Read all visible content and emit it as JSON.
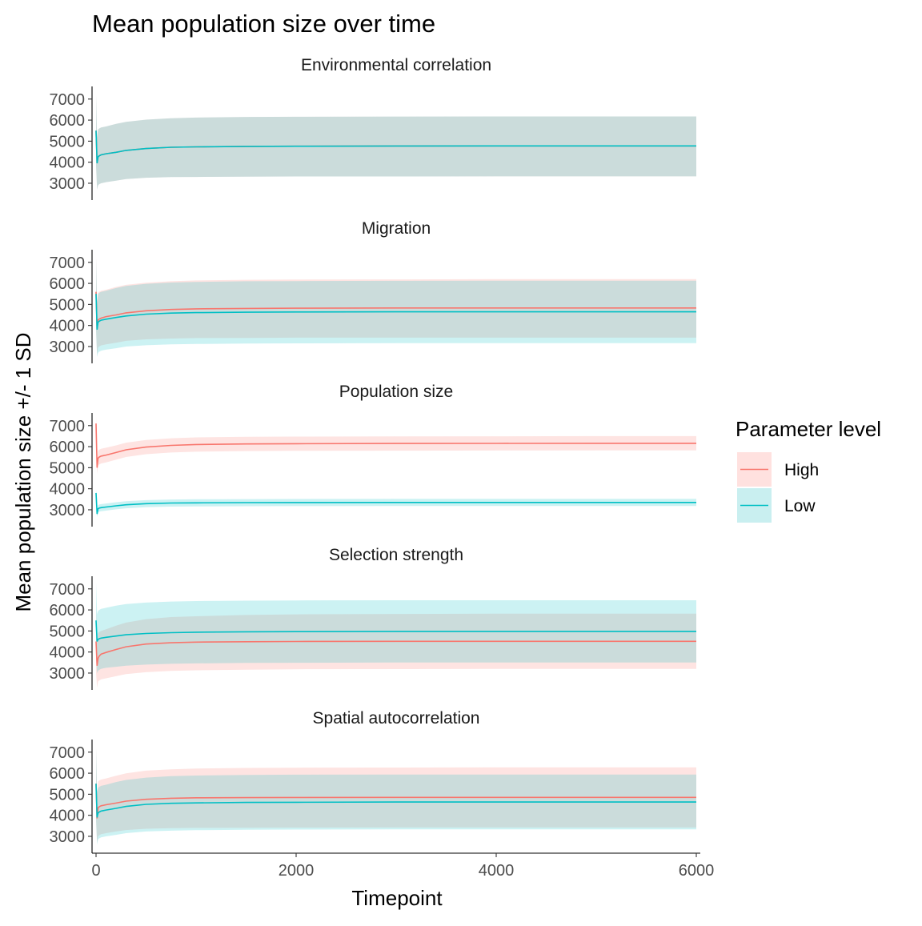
{
  "chart_data": {
    "type": "line",
    "title": "Mean population size over time",
    "xlabel": "Timepoint",
    "ylabel": "Mean population size +/- 1 SD",
    "xlim": [
      -40,
      6040
    ],
    "ylim": [
      2200,
      7600
    ],
    "x_ticks": [
      0,
      2000,
      4000,
      6000
    ],
    "y_ticks": [
      3000,
      4000,
      5000,
      6000,
      7000
    ],
    "band": "mean +/- 1 SD",
    "grid": false,
    "legend": {
      "title": "Parameter level",
      "placement": "right",
      "entries": [
        {
          "label": "High",
          "line_color": "#F8766D",
          "fill_color": "#FFE1DF"
        },
        {
          "label": "Low",
          "line_color": "#00BFC4",
          "fill_color": "#C9EFF0"
        }
      ]
    },
    "overlap_fill_color": "#CDDFDE",
    "x_profile": [
      0,
      10,
      20,
      30,
      50,
      100,
      200,
      300,
      500,
      750,
      1000,
      1500,
      2000,
      3000,
      4000,
      5000,
      6000
    ],
    "panels": [
      {
        "title": "Environmental correlation",
        "series": [
          {
            "name": "High",
            "mean": [
              5500,
              3950,
              4250,
              4300,
              4350,
              4400,
              4470,
              4560,
              4650,
              4710,
              4730,
              4750,
              4760,
              4770,
              4775,
              4775,
              4775
            ],
            "lower": [
              3800,
              2700,
              2900,
              2950,
              3000,
              3050,
              3120,
              3200,
              3260,
              3290,
              3300,
              3310,
              3320,
              3320,
              3325,
              3325,
              3325
            ],
            "upper": [
              7200,
              5200,
              5550,
              5600,
              5650,
              5700,
              5820,
              5920,
              6020,
              6090,
              6120,
              6150,
              6160,
              6170,
              6175,
              6175,
              6175
            ]
          },
          {
            "name": "Low",
            "mean": [
              5500,
              3950,
              4250,
              4300,
              4350,
              4400,
              4470,
              4560,
              4650,
              4710,
              4730,
              4750,
              4760,
              4770,
              4775,
              4775,
              4775
            ],
            "lower": [
              3800,
              2700,
              2900,
              2950,
              3000,
              3050,
              3120,
              3200,
              3260,
              3290,
              3300,
              3310,
              3320,
              3320,
              3325,
              3325,
              3325
            ],
            "upper": [
              7200,
              5200,
              5550,
              5600,
              5650,
              5700,
              5820,
              5920,
              6020,
              6090,
              6120,
              6150,
              6160,
              6170,
              6175,
              6175,
              6175
            ]
          }
        ]
      },
      {
        "title": "Migration",
        "series": [
          {
            "name": "High",
            "mean": [
              5600,
              3850,
              4250,
              4300,
              4350,
              4420,
              4500,
              4600,
              4700,
              4760,
              4790,
              4810,
              4820,
              4830,
              4830,
              4830,
              4830
            ],
            "lower": [
              3800,
              2600,
              2950,
              3000,
              3050,
              3100,
              3180,
              3270,
              3340,
              3380,
              3400,
              3410,
              3420,
              3420,
              3420,
              3420,
              3420
            ],
            "upper": [
              7300,
              5100,
              5550,
              5600,
              5650,
              5700,
              5830,
              5930,
              6030,
              6100,
              6140,
              6170,
              6180,
              6190,
              6200,
              6200,
              6200
            ]
          },
          {
            "name": "Low",
            "mean": [
              5500,
              3800,
              4150,
              4200,
              4250,
              4300,
              4380,
              4450,
              4540,
              4590,
              4610,
              4630,
              4640,
              4650,
              4650,
              4650,
              4650
            ],
            "lower": [
              3700,
              2500,
              2700,
              2750,
              2800,
              2850,
              2920,
              3000,
              3060,
              3100,
              3120,
              3140,
              3150,
              3160,
              3160,
              3160,
              3160
            ],
            "upper": [
              7200,
              5050,
              5500,
              5550,
              5600,
              5650,
              5780,
              5880,
              5980,
              6040,
              6070,
              6100,
              6110,
              6120,
              6130,
              6130,
              6130
            ]
          }
        ]
      },
      {
        "title": "Population size",
        "series": [
          {
            "name": "High",
            "mean": [
              7100,
              5000,
              5450,
              5500,
              5550,
              5600,
              5720,
              5850,
              5980,
              6060,
              6100,
              6130,
              6140,
              6150,
              6155,
              6160,
              6160
            ],
            "lower": [
              6600,
              4700,
              5100,
              5150,
              5200,
              5250,
              5380,
              5510,
              5640,
              5720,
              5760,
              5790,
              5800,
              5810,
              5815,
              5820,
              5820
            ],
            "upper": [
              7500,
              5300,
              5800,
              5850,
              5900,
              5950,
              6060,
              6190,
              6320,
              6400,
              6440,
              6470,
              6480,
              6490,
              6495,
              6500,
              6500
            ]
          },
          {
            "name": "Low",
            "mean": [
              3800,
              2800,
              3050,
              3080,
              3100,
              3130,
              3190,
              3240,
              3290,
              3320,
              3330,
              3340,
              3345,
              3350,
              3350,
              3350,
              3350
            ],
            "lower": [
              3600,
              2650,
              2880,
              2910,
              2930,
              2960,
              3020,
              3070,
              3120,
              3150,
              3160,
              3170,
              3175,
              3180,
              3180,
              3180,
              3180
            ],
            "upper": [
              4000,
              2950,
              3220,
              3250,
              3270,
              3300,
              3360,
              3410,
              3460,
              3490,
              3500,
              3510,
              3515,
              3520,
              3520,
              3520,
              3520
            ]
          }
        ]
      },
      {
        "title": "Selection strength",
        "series": [
          {
            "name": "High",
            "mean": [
              4500,
              3350,
              3700,
              3800,
              3900,
              3980,
              4120,
              4250,
              4380,
              4440,
              4470,
              4490,
              4500,
              4510,
              4510,
              4510,
              4510
            ],
            "lower": [
              3000,
              2300,
              2600,
              2650,
              2700,
              2750,
              2850,
              2950,
              3040,
              3100,
              3130,
              3160,
              3180,
              3190,
              3200,
              3200,
              3200
            ],
            "upper": [
              6000,
              4500,
              4900,
              4950,
              5000,
              5080,
              5250,
              5400,
              5560,
              5660,
              5700,
              5760,
              5790,
              5810,
              5820,
              5820,
              5820
            ]
          },
          {
            "name": "Low",
            "mean": [
              5500,
              4500,
              4600,
              4630,
              4660,
              4700,
              4760,
              4820,
              4880,
              4920,
              4940,
              4960,
              4970,
              4980,
              4980,
              4980,
              4980
            ],
            "lower": [
              3700,
              3000,
              3100,
              3150,
              3200,
              3250,
              3300,
              3350,
              3400,
              3440,
              3460,
              3480,
              3490,
              3500,
              3500,
              3500,
              3500
            ],
            "upper": [
              7300,
              5800,
              5950,
              6000,
              6050,
              6100,
              6200,
              6280,
              6350,
              6400,
              6420,
              6440,
              6450,
              6460,
              6460,
              6460,
              6460
            ]
          }
        ]
      },
      {
        "title": "Spatial autocorrelation",
        "series": [
          {
            "name": "High",
            "mean": [
              5500,
              3850,
              4350,
              4400,
              4450,
              4500,
              4580,
              4670,
              4760,
              4810,
              4830,
              4840,
              4845,
              4850,
              4850,
              4850,
              4850
            ],
            "lower": [
              3800,
              2700,
              3000,
              3050,
              3100,
              3150,
              3230,
              3300,
              3360,
              3390,
              3400,
              3410,
              3415,
              3420,
              3420,
              3420,
              3420
            ],
            "upper": [
              7200,
              5000,
              5600,
              5650,
              5700,
              5750,
              5880,
              5990,
              6120,
              6180,
              6220,
              6250,
              6260,
              6270,
              6275,
              6280,
              6280
            ]
          },
          {
            "name": "Low",
            "mean": [
              5500,
              3900,
              4100,
              4150,
              4200,
              4250,
              4330,
              4420,
              4520,
              4570,
              4590,
              4610,
              4620,
              4630,
              4630,
              4630,
              4630
            ],
            "lower": [
              3700,
              2600,
              2850,
              2900,
              2950,
              3000,
              3070,
              3150,
              3230,
              3270,
              3290,
              3310,
              3320,
              3330,
              3330,
              3330,
              3330
            ],
            "upper": [
              7200,
              5100,
              5300,
              5350,
              5400,
              5450,
              5580,
              5680,
              5790,
              5860,
              5890,
              5920,
              5930,
              5940,
              5940,
              5940,
              5940
            ]
          }
        ]
      }
    ]
  }
}
